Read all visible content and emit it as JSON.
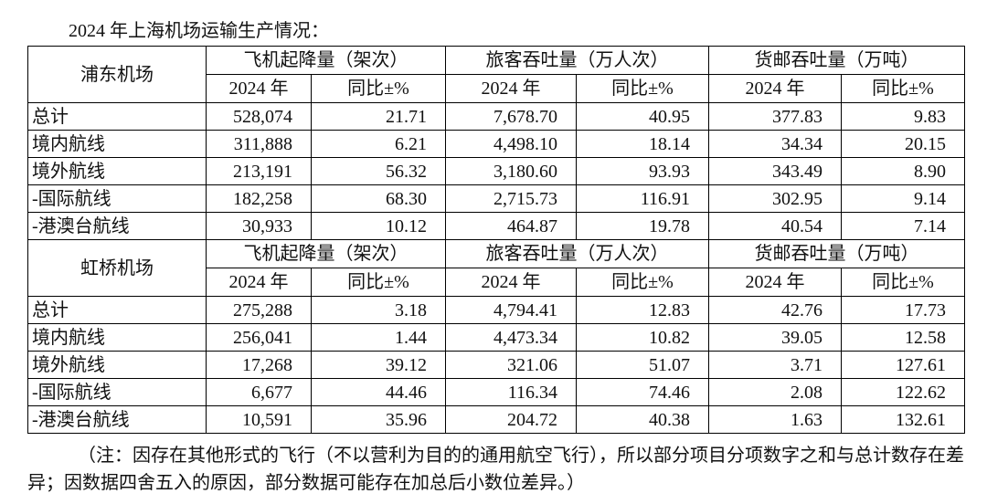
{
  "title": "2024 年上海机场运输生产情况：",
  "sections": [
    {
      "name": "浦东机场",
      "groups": [
        "飞机起降量（架次）",
        "旅客吞吐量（万人次）",
        "货邮吞吐量（万吨）"
      ],
      "subheaders": [
        "2024 年",
        "同比±%",
        "2024 年",
        "同比±%",
        "2024 年",
        "同比±%"
      ],
      "rows": [
        [
          "总计",
          "528,074",
          "21.71",
          "7,678.70",
          "40.95",
          "377.83",
          "9.83"
        ],
        [
          "境内航线",
          "311,888",
          "6.21",
          "4,498.10",
          "18.14",
          "34.34",
          "20.15"
        ],
        [
          "境外航线",
          "213,191",
          "56.32",
          "3,180.60",
          "93.93",
          "343.49",
          "8.90"
        ],
        [
          "-国际航线",
          "182,258",
          "68.30",
          "2,715.73",
          "116.91",
          "302.95",
          "9.14"
        ],
        [
          "-港澳台航线",
          "30,933",
          "10.12",
          "464.87",
          "19.78",
          "40.54",
          "7.14"
        ]
      ]
    },
    {
      "name": "虹桥机场",
      "groups": [
        "飞机起降量（架次）",
        "旅客吞吐量（万人次）",
        "货邮吞吐量（万吨）"
      ],
      "subheaders": [
        "2024 年",
        "同比±%",
        "2024 年",
        "同比±%",
        "2024 年",
        "同比±%"
      ],
      "rows": [
        [
          "总计",
          "275,288",
          "3.18",
          "4,794.41",
          "12.83",
          "42.76",
          "17.73"
        ],
        [
          "境内航线",
          "256,041",
          "1.44",
          "4,473.34",
          "10.82",
          "39.05",
          "12.58"
        ],
        [
          "境外航线",
          "17,268",
          "39.12",
          "321.06",
          "51.07",
          "3.71",
          "127.61"
        ],
        [
          "-国际航线",
          "6,677",
          "44.46",
          "116.34",
          "74.46",
          "2.08",
          "122.62"
        ],
        [
          "-港澳台航线",
          "10,591",
          "35.96",
          "204.72",
          "40.38",
          "1.63",
          "132.61"
        ]
      ]
    }
  ],
  "note": "（注：因存在其他形式的飞行（不以营利为目的的通用航空飞行），所以部分项目分项数字之和与总计数存在差异；因数据四舍五入的原因，部分数据可能存在加总后小数位差异。）"
}
